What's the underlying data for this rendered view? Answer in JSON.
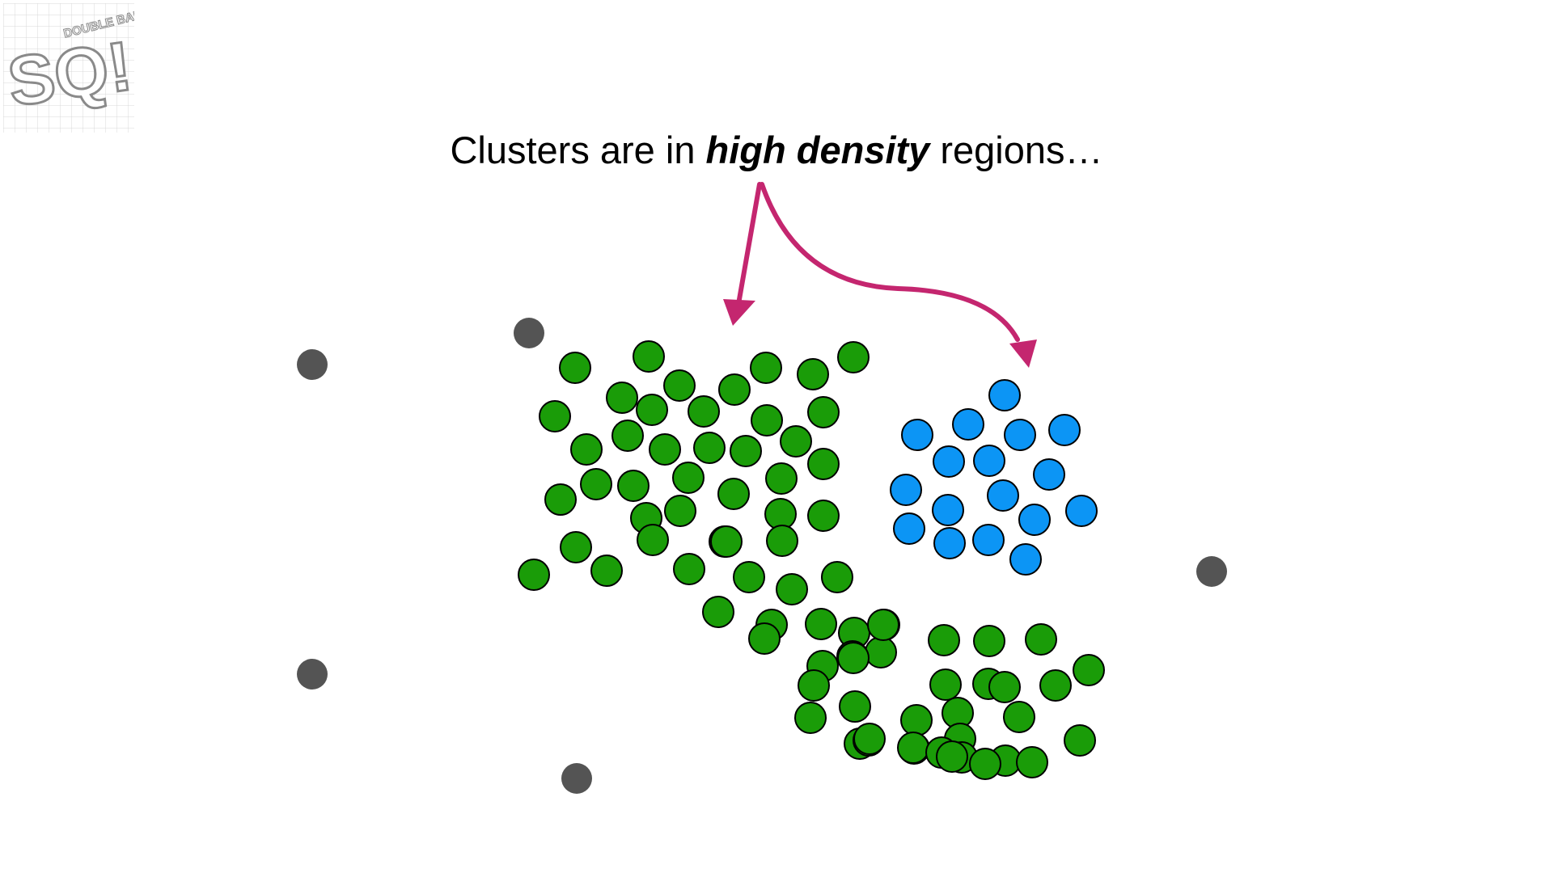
{
  "logo": {
    "letters": "SQ!",
    "tagline": "DOUBLE BAM!!!"
  },
  "caption": {
    "before": "Clusters are in",
    "emphasis": "high density",
    "after": "regions…"
  },
  "colors": {
    "cluster_green": "#1a9c08",
    "cluster_blue": "#0c95f5",
    "outlier_gray": "#545454",
    "arrow": "#c4266f",
    "point_outline": "#000000"
  },
  "legend_semantics": {
    "clusters": [
      "green",
      "blue"
    ],
    "noise": "gray"
  }
}
